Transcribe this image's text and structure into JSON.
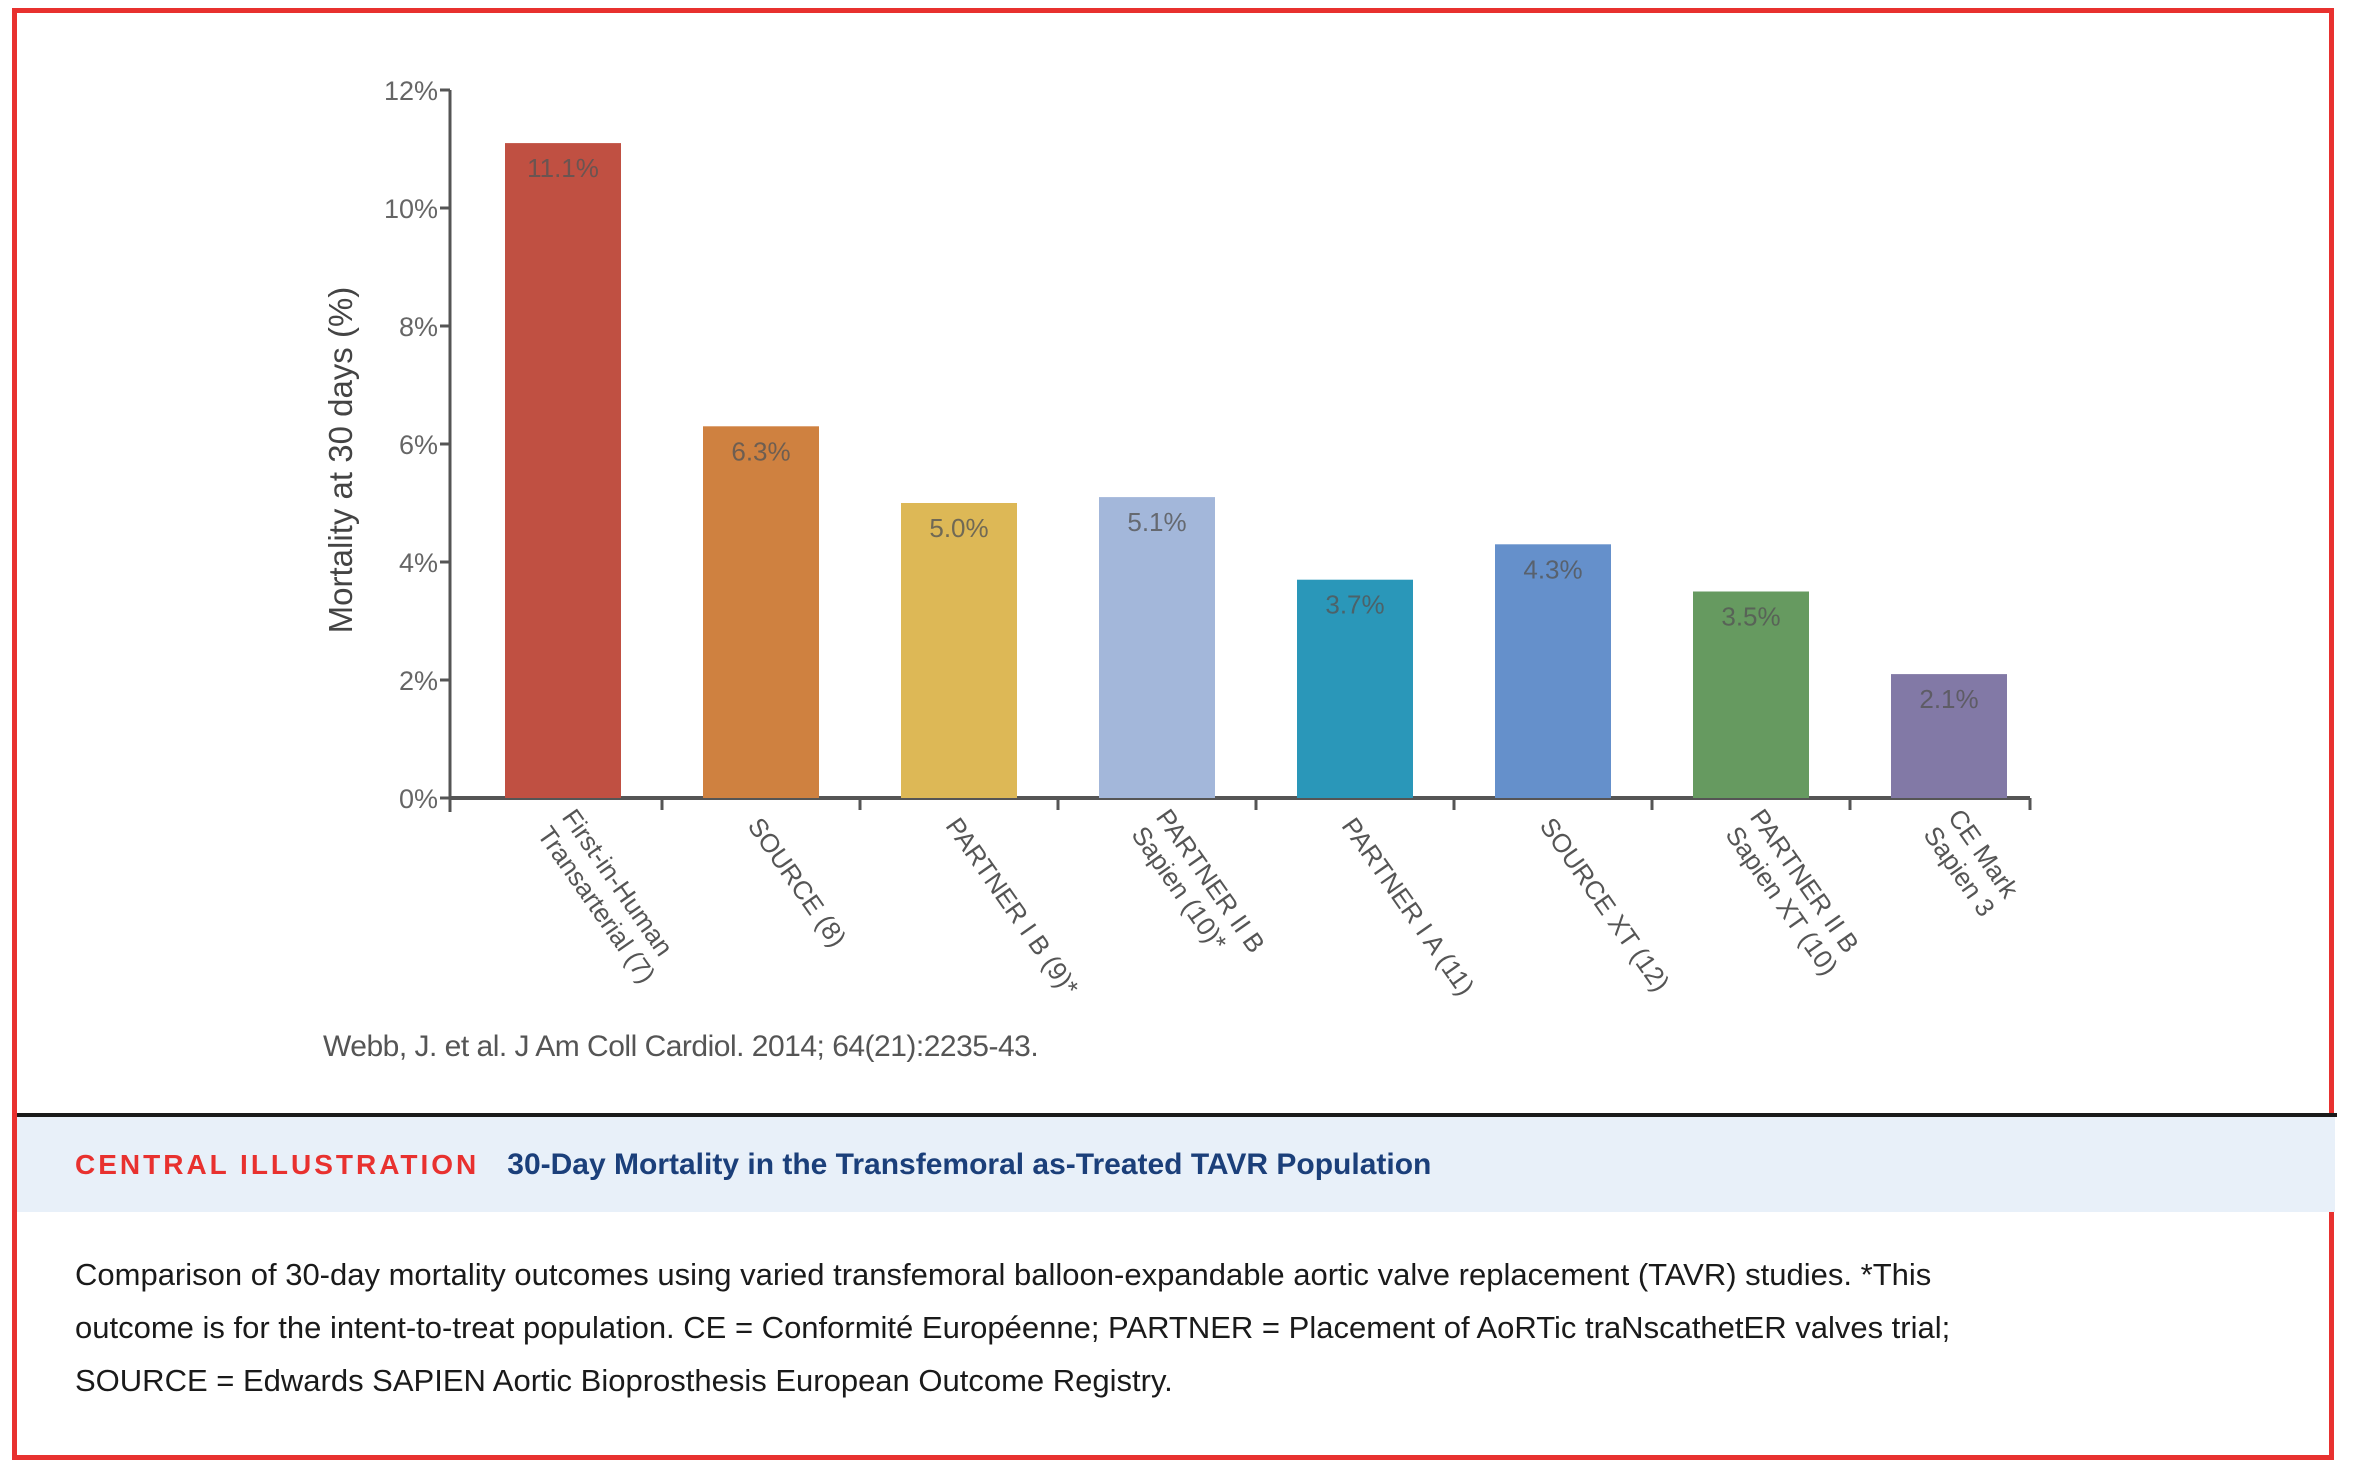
{
  "chart_data": {
    "type": "bar",
    "title": "",
    "xlabel": "",
    "ylabel": "Mortality at 30 days (%)",
    "ylim": [
      0,
      12
    ],
    "yticks": [
      0,
      2,
      4,
      6,
      8,
      10,
      12
    ],
    "ytick_labels": [
      "0%",
      "2%",
      "4%",
      "6%",
      "8%",
      "10%",
      "12%"
    ],
    "grid": false,
    "legend": "none",
    "categories": [
      [
        "First-in-Human",
        "Transarterial (7)"
      ],
      [
        "SOURCE (8)"
      ],
      [
        "PARTNER I B (9)*"
      ],
      [
        "PARTNER II B",
        "Sapien (10)*"
      ],
      [
        "PARTNER I A (11)"
      ],
      [
        "SOURCE XT (12)"
      ],
      [
        "PARTNER II B",
        "Sapien XT (10)"
      ],
      [
        "CE Mark",
        "Sapien 3"
      ]
    ],
    "values": [
      11.1,
      6.3,
      5.0,
      5.1,
      3.7,
      4.3,
      3.5,
      2.1
    ],
    "value_labels": [
      "11.1%",
      "6.3%",
      "5.0%",
      "5.1%",
      "3.7%",
      "4.3%",
      "3.5%",
      "2.1%"
    ],
    "colors": [
      "#c05042",
      "#cf8140",
      "#ddb856",
      "#a3b7da",
      "#2a97b9",
      "#6590cb",
      "#669a60",
      "#8279a6"
    ]
  },
  "citation": "Webb, J. et al. J Am Coll Cardiol. 2014; 64(21):2235-43.",
  "header": {
    "label": "CENTRAL ILLUSTRATION",
    "title": "30-Day Mortality in the Transfemoral as-Treated TAVR Population",
    "label_color": "#e8312f",
    "title_color": "#1b3f7a"
  },
  "caption": {
    "lines": [
      "Comparison of 30-day mortality outcomes using varied transfemoral balloon-expandable aortic valve replacement (TAVR) studies. *This",
      "outcome is for the intent-to-treat population. CE = Conformité Européenne; PARTNER = Placement of AoRTic traNscathetER valves trial;",
      "SOURCE = Edwards SAPIEN Aortic Bioprosthesis European Outcome Registry."
    ]
  }
}
